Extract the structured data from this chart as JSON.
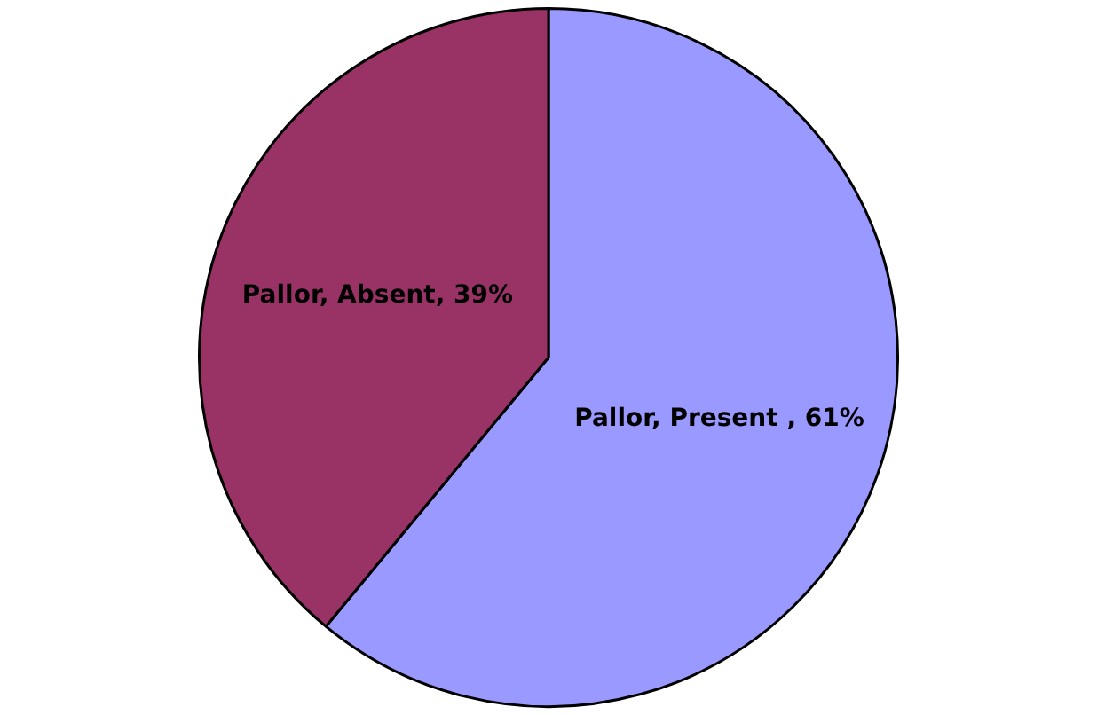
{
  "chart_data": {
    "type": "pie",
    "categories": [
      "Pallor, Present ",
      "Pallor, Absent"
    ],
    "values": [
      61,
      39
    ],
    "colors": [
      "#9999ff",
      "#993366"
    ],
    "value_labels": [
      "61%",
      "39%"
    ],
    "legend": false
  }
}
